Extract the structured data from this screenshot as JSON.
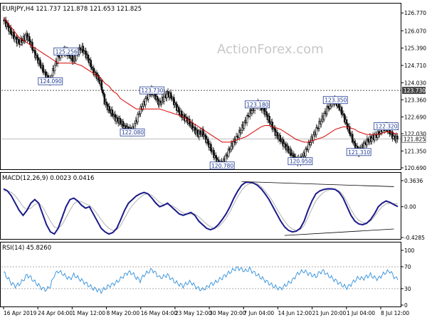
{
  "header": {
    "symbol_line": "EURJPY,H4  121.737 121.878 121.653 121.825",
    "watermark": "ActionForex.com"
  },
  "colors": {
    "candle": "#111111",
    "ma": "#d60000",
    "macd": "#1a1a8c",
    "signal": "#a0a0a0",
    "rsi": "#2f8fdc",
    "label_border": "#1f3a93",
    "label_text": "#1f3a93",
    "axis_text": "#000000"
  },
  "chart_data": [
    {
      "type": "candlestick",
      "name": "price",
      "ylim": [
        120.69,
        126.72
      ],
      "y_ticks": [
        "126.770",
        "126.070",
        "125.390",
        "124.710",
        "124.030",
        "123.360",
        "122.690",
        "122.030",
        "121.350",
        "120.690"
      ],
      "y_tick_values": [
        126.77,
        126.07,
        125.39,
        124.71,
        124.03,
        123.36,
        122.69,
        122.03,
        121.35,
        120.69
      ],
      "current_price": "121.825",
      "current_price_value": 121.825,
      "resistance_level": "123.730",
      "resistance_value": 123.73,
      "x_labels": [
        "16 Apr 2019",
        "24 Apr 04:00",
        "1 May 12:00",
        "8 May 20:00",
        "16 May 04:00",
        "23 May 12:00",
        "30 May 20:00",
        "7 Jun 04:00",
        "14 Jun 12:00",
        "21 Jun 20:00",
        "1 Jul 04:00",
        "8 Jul 12:00"
      ],
      "close_series": [
        126.5,
        126.3,
        126.0,
        125.8,
        125.6,
        125.7,
        125.9,
        125.6,
        125.2,
        124.9,
        124.6,
        124.3,
        124.1,
        124.6,
        125.0,
        125.2,
        125.3,
        125.1,
        124.9,
        125.2,
        125.4,
        125.2,
        124.9,
        124.5,
        124.3,
        124.0,
        123.3,
        123.0,
        122.8,
        122.6,
        122.5,
        122.3,
        122.2,
        122.1,
        122.5,
        122.9,
        123.2,
        123.5,
        123.7,
        123.5,
        123.2,
        123.4,
        123.6,
        123.5,
        123.2,
        122.9,
        122.7,
        122.6,
        122.4,
        122.2,
        122.0,
        122.1,
        121.8,
        121.5,
        121.2,
        120.9,
        120.8,
        121.1,
        121.4,
        121.7,
        121.9,
        122.2,
        122.5,
        122.8,
        123.0,
        123.2,
        123.1,
        122.9,
        122.6,
        122.3,
        122.0,
        121.8,
        121.6,
        121.4,
        121.2,
        121.0,
        120.95,
        121.2,
        121.5,
        121.8,
        122.1,
        122.4,
        122.7,
        123.0,
        123.2,
        123.35,
        123.1,
        122.8,
        122.4,
        122.0,
        121.6,
        121.31,
        121.5,
        121.7,
        121.8,
        121.9,
        122.0,
        122.2,
        122.3,
        122.1,
        121.9,
        121.825
      ],
      "ma_series": [
        126.6,
        126.4,
        126.2,
        126.0,
        125.8,
        125.7,
        125.6,
        125.5,
        125.4,
        125.3,
        125.2,
        125.1,
        125.0,
        124.9,
        124.8,
        124.8,
        124.8,
        124.8,
        124.8,
        124.75,
        124.7,
        124.6,
        124.5,
        124.4,
        124.3,
        124.2,
        124.0,
        123.9,
        123.7,
        123.6,
        123.4,
        123.3,
        123.2,
        123.1,
        123.0,
        123.0,
        123.0,
        123.0,
        123.0,
        123.0,
        123.0,
        122.95,
        122.9,
        122.85,
        122.8,
        122.75,
        122.7,
        122.6,
        122.5,
        122.4,
        122.3,
        122.2,
        122.1,
        122.0,
        121.9,
        121.8,
        121.7,
        121.7,
        121.7,
        121.75,
        121.8,
        121.85,
        121.9,
        122.0,
        122.1,
        122.2,
        122.3,
        122.35,
        122.35,
        122.3,
        122.25,
        122.2,
        122.1,
        122.0,
        121.9,
        121.8,
        121.75,
        121.7,
        121.7,
        121.75,
        121.8,
        121.85,
        121.9,
        122.0,
        122.1,
        122.2,
        122.25,
        122.3,
        122.3,
        122.25,
        122.2,
        122.1,
        122.05,
        122.0,
        122.0,
        122.0,
        122.0,
        122.05,
        122.1,
        122.1,
        122.05,
        122.0
      ],
      "annotations": [
        {
          "text": "125.256",
          "price": 125.26,
          "index": 16
        },
        {
          "text": "124.090",
          "price": 124.09,
          "index": 12
        },
        {
          "text": "123.730",
          "price": 123.73,
          "index": 38
        },
        {
          "text": "122.080",
          "price": 122.08,
          "index": 33
        },
        {
          "text": "120.780",
          "price": 120.78,
          "index": 56
        },
        {
          "text": "123.180",
          "price": 123.18,
          "index": 65
        },
        {
          "text": "120.950",
          "price": 120.95,
          "index": 76
        },
        {
          "text": "123.350",
          "price": 123.35,
          "index": 85
        },
        {
          "text": "121.310",
          "price": 121.31,
          "index": 91
        },
        {
          "text": "122.320",
          "price": 122.32,
          "index": 98
        }
      ]
    },
    {
      "type": "line",
      "name": "MACD",
      "label": "MACD(12,26,9) 0.0023 0.0416",
      "ylim": [
        -0.4285,
        0.3636
      ],
      "y_ticks": [
        "0.3636",
        "0.00",
        "-0.4285"
      ],
      "y_tick_values": [
        0.3636,
        0.0,
        -0.4285
      ],
      "macd_series": [
        0.25,
        0.22,
        0.15,
        0.05,
        -0.05,
        -0.12,
        -0.05,
        0.05,
        0.1,
        0.05,
        -0.1,
        -0.25,
        -0.35,
        -0.38,
        -0.3,
        -0.15,
        0.0,
        0.1,
        0.12,
        0.08,
        0.02,
        -0.02,
        0.0,
        -0.1,
        -0.2,
        -0.3,
        -0.35,
        -0.38,
        -0.36,
        -0.3,
        -0.18,
        -0.05,
        0.05,
        0.1,
        0.15,
        0.18,
        0.2,
        0.18,
        0.12,
        0.05,
        0.0,
        0.02,
        0.05,
        0.0,
        -0.05,
        -0.1,
        -0.12,
        -0.1,
        -0.08,
        -0.12,
        -0.2,
        -0.25,
        -0.3,
        -0.32,
        -0.3,
        -0.25,
        -0.18,
        -0.1,
        0.0,
        0.12,
        0.22,
        0.3,
        0.34,
        0.34,
        0.33,
        0.3,
        0.25,
        0.18,
        0.1,
        0.0,
        -0.1,
        -0.2,
        -0.28,
        -0.33,
        -0.35,
        -0.34,
        -0.3,
        -0.2,
        -0.05,
        0.08,
        0.18,
        0.22,
        0.24,
        0.25,
        0.25,
        0.24,
        0.2,
        0.12,
        0.0,
        -0.12,
        -0.2,
        -0.24,
        -0.25,
        -0.23,
        -0.18,
        -0.1,
        0.0,
        0.05,
        0.08,
        0.06,
        0.03,
        0.0023
      ],
      "signal_series": [
        0.22,
        0.22,
        0.2,
        0.15,
        0.08,
        0.0,
        -0.04,
        -0.02,
        0.03,
        0.05,
        0.0,
        -0.1,
        -0.2,
        -0.28,
        -0.3,
        -0.25,
        -0.15,
        -0.05,
        0.04,
        0.08,
        0.07,
        0.04,
        0.02,
        -0.03,
        -0.1,
        -0.18,
        -0.25,
        -0.3,
        -0.33,
        -0.32,
        -0.26,
        -0.16,
        -0.06,
        0.02,
        0.08,
        0.13,
        0.17,
        0.18,
        0.16,
        0.11,
        0.06,
        0.03,
        0.03,
        0.02,
        -0.01,
        -0.05,
        -0.09,
        -0.1,
        -0.1,
        -0.1,
        -0.14,
        -0.19,
        -0.24,
        -0.28,
        -0.3,
        -0.28,
        -0.23,
        -0.16,
        -0.07,
        0.04,
        0.14,
        0.23,
        0.29,
        0.32,
        0.33,
        0.32,
        0.28,
        0.22,
        0.15,
        0.07,
        -0.03,
        -0.12,
        -0.2,
        -0.27,
        -0.31,
        -0.33,
        -0.32,
        -0.26,
        -0.15,
        -0.03,
        0.08,
        0.15,
        0.2,
        0.23,
        0.24,
        0.24,
        0.22,
        0.16,
        0.07,
        -0.04,
        -0.13,
        -0.19,
        -0.22,
        -0.23,
        -0.2,
        -0.14,
        -0.06,
        0.0,
        0.04,
        0.05,
        0.045,
        0.0416
      ]
    },
    {
      "type": "line",
      "name": "RSI",
      "label": "RSI(14) 45.8260",
      "ylim": [
        0,
        100
      ],
      "y_ticks": [
        "100",
        "70",
        "30",
        "0"
      ],
      "y_tick_values": [
        100,
        70,
        30,
        0
      ],
      "rsi_series": [
        60,
        50,
        40,
        35,
        38,
        45,
        55,
        50,
        42,
        36,
        30,
        28,
        35,
        55,
        62,
        58,
        52,
        48,
        55,
        50,
        45,
        40,
        35,
        30,
        28,
        25,
        30,
        35,
        38,
        42,
        48,
        55,
        60,
        58,
        50,
        45,
        55,
        60,
        65,
        58,
        50,
        52,
        55,
        48,
        42,
        38,
        35,
        40,
        42,
        35,
        30,
        28,
        32,
        38,
        40,
        45,
        50,
        55,
        60,
        65,
        68,
        65,
        62,
        66,
        60,
        55,
        50,
        45,
        40,
        35,
        32,
        30,
        35,
        40,
        45,
        55,
        60,
        62,
        58,
        55,
        52,
        60,
        62,
        55,
        50,
        45,
        40,
        35,
        32,
        38,
        45,
        50,
        48,
        52,
        55,
        50,
        48,
        55,
        60,
        62,
        52,
        45.826
      ],
      "current_value": "45.8260"
    }
  ]
}
